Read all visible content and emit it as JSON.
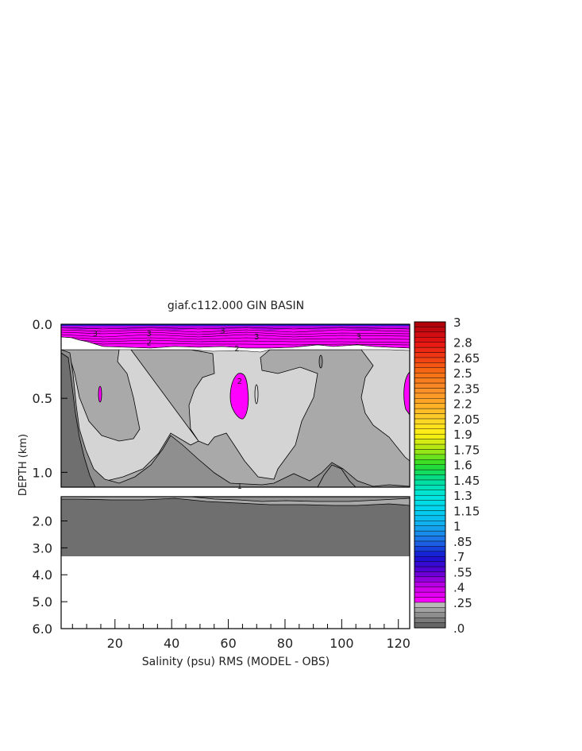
{
  "chart_data": {
    "type": "heatmap",
    "title": "giaf.c112.000  GIN BASIN",
    "xlabel": "Salinity (psu) RMS (MODEL - OBS)",
    "ylabel": "DEPTH (km)",
    "x_ticks": [
      "20",
      "40",
      "60",
      "80",
      "100",
      "120"
    ],
    "x_tick_values": [
      20,
      40,
      60,
      80,
      100,
      120
    ],
    "xlim": [
      1,
      124
    ],
    "upper_panel": {
      "ylim": [
        0.0,
        1.1
      ],
      "y_ticks": [
        "0.0",
        "0.5",
        "1.0"
      ],
      "y_tick_values": [
        0.0,
        0.5,
        1.0
      ]
    },
    "lower_panel": {
      "ylim": [
        1.1,
        6.0
      ],
      "y_ticks": [
        "2.0",
        "3.0",
        "4.0",
        "5.0",
        "6.0"
      ],
      "y_tick_values": [
        2.0,
        3.0,
        4.0,
        5.0,
        6.0
      ],
      "bottom_of_data_km": 3.35
    },
    "contour_labels": [
      {
        "text": "3",
        "x": 13,
        "y": 0.06
      },
      {
        "text": "3",
        "x": 32,
        "y": 0.06
      },
      {
        "text": "3",
        "x": 58,
        "y": 0.04
      },
      {
        "text": "3",
        "x": 70,
        "y": 0.08
      },
      {
        "text": "3",
        "x": 106,
        "y": 0.08
      },
      {
        "text": "2",
        "x": 32,
        "y": 0.12
      },
      {
        "text": "2",
        "x": 63,
        "y": 0.16
      },
      {
        "text": "2",
        "x": 64,
        "y": 0.38
      },
      {
        "text": "1",
        "x": 64,
        "y": 1.09
      }
    ],
    "colorbar": {
      "labels": [
        "3",
        "2.8",
        "2.65",
        "2.5",
        "2.35",
        "2.2",
        "2.05",
        "1.9",
        "1.75",
        "1.6",
        "1.45",
        "1.3",
        "1.15",
        "1",
        ".85",
        ".7",
        ".55",
        ".4",
        ".25",
        ".0"
      ],
      "min": 0.0,
      "max": 3.0,
      "step": 0.05,
      "gray_levels": [
        "#ffffff",
        "#d2d2d2",
        "#b9b9b9",
        "#a3a3a3",
        "#8e8e8e",
        "#7a7a7a",
        "#666666"
      ]
    },
    "fill_colors": {
      "lightest": "#d4d4d4",
      "light": "#a9a9a9",
      "mid": "#8f8f8f",
      "dark": "#6f6f6f",
      "magenta": "#ff00ff",
      "purple": "#9a00c8",
      "blue": "#1e1ec8"
    }
  }
}
